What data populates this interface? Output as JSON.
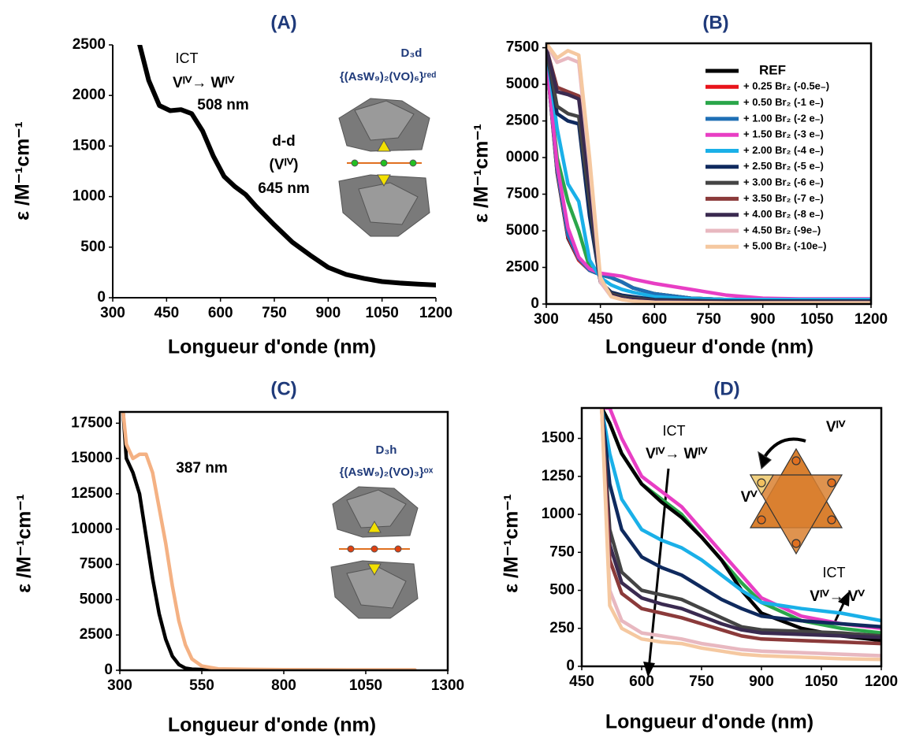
{
  "chart_data": [
    {
      "type": "line",
      "title": "(A)",
      "x_label": "Longueur d'onde (nm)",
      "y_label": "ε /M⁻¹cm⁻¹",
      "xlim": [
        300,
        1200
      ],
      "xticks": [
        300,
        450,
        600,
        750,
        900,
        1050,
        1200
      ],
      "ylim": [
        0,
        2500
      ],
      "yticks": [
        0,
        500,
        1000,
        1500,
        2000,
        2500
      ],
      "grid": false,
      "annotations": [
        "ICT",
        "Vᴵⱽ→ Wᴵⱽ",
        "508 nm",
        "d-d",
        "(Vᴵⱽ)",
        "645 nm",
        "D₃d",
        "{(AsW₉)₂(VO)₆}ʳᵉᵈ"
      ],
      "x": [
        375,
        400,
        430,
        460,
        490,
        520,
        550,
        580,
        610,
        640,
        670,
        700,
        750,
        800,
        850,
        900,
        950,
        1000,
        1050,
        1100,
        1150,
        1200
      ],
      "series": [
        {
          "color": "#000000",
          "values": [
            2500,
            2150,
            1900,
            1850,
            1860,
            1820,
            1650,
            1400,
            1200,
            1100,
            1020,
            900,
            720,
            550,
            420,
            300,
            230,
            190,
            160,
            145,
            135,
            125
          ]
        }
      ]
    },
    {
      "type": "line",
      "title": "(B)",
      "x_label": "Longueur d'onde (nm)",
      "y_label": "ε /M⁻¹cm⁻¹",
      "xlim": [
        300,
        1200
      ],
      "xticks": [
        300,
        450,
        600,
        750,
        900,
        1050,
        1200
      ],
      "ylim": [
        0,
        17800
      ],
      "yticks": [
        0,
        2500,
        5000,
        7500,
        {
          "value": 10000,
          "label": "0000"
        },
        {
          "value": 12500,
          "label": "2500"
        },
        {
          "value": 15000,
          "label": "5000"
        },
        {
          "value": 17500,
          "label": "7500"
        }
      ],
      "grid": false,
      "legend": "upper right",
      "x": [
        300,
        330,
        360,
        390,
        420,
        450,
        480,
        510,
        540,
        600,
        700,
        800,
        900,
        1000,
        1100,
        1200
      ],
      "series": [
        {
          "name": "REF",
          "color": "#000000",
          "values": [
            17000,
            9000,
            4500,
            3000,
            2300,
            2000,
            1800,
            1500,
            1100,
            700,
            400,
            300,
            250,
            230,
            220,
            200
          ]
        },
        {
          "name": "+ 0.25 Br₂ (-0.5e₋)",
          "color": "#e8141b",
          "values": [
            17000,
            9100,
            4600,
            3000,
            2300,
            2000,
            1800,
            1500,
            1100,
            700,
            400,
            300,
            250,
            230,
            220,
            200
          ]
        },
        {
          "name": "+ 0.50 Br₂ (-1 e₋)",
          "color": "#2aa64a",
          "values": [
            17000,
            10000,
            7000,
            5000,
            2500,
            2000,
            1800,
            1500,
            1100,
            700,
            400,
            300,
            250,
            230,
            220,
            200
          ]
        },
        {
          "name": "+ 1.00 Br₂ (-2 e₋)",
          "color": "#1f6fb5",
          "values": [
            17000,
            9200,
            4700,
            3100,
            2300,
            2000,
            1800,
            1500,
            1100,
            700,
            400,
            300,
            250,
            230,
            220,
            200
          ]
        },
        {
          "name": "+ 1.50 Br₂ (-3 e₋)",
          "color": "#e83ec4",
          "values": [
            17000,
            9500,
            5200,
            3200,
            2400,
            2100,
            2000,
            1900,
            1700,
            1400,
            1000,
            600,
            400,
            350,
            350,
            350
          ]
        },
        {
          "name": "+ 2.00 Br₂ (-4 e₋)",
          "color": "#1ab0e8",
          "values": [
            17500,
            12000,
            8200,
            7000,
            3000,
            1800,
            1300,
            1000,
            800,
            500,
            350,
            300,
            300,
            300,
            300,
            300
          ]
        },
        {
          "name": "+ 2.50 Br₂ (-5 e₋)",
          "color": "#0f2a5e",
          "values": [
            17500,
            13000,
            12500,
            12300,
            6000,
            1500,
            800,
            600,
            500,
            300,
            250,
            200,
            200,
            200,
            200,
            200
          ]
        },
        {
          "name": "+ 3.00 Br₂ (-6 e₋)",
          "color": "#444444",
          "values": [
            17500,
            13500,
            13000,
            12800,
            7000,
            1500,
            700,
            500,
            400,
            250,
            200,
            150,
            150,
            150,
            150,
            150
          ]
        },
        {
          "name": "+ 3.50 Br₂ (-7 e₋)",
          "color": "#8b3a3a",
          "values": [
            17500,
            14800,
            14500,
            14200,
            8500,
            1500,
            600,
            400,
            300,
            200,
            150,
            120,
            110,
            110,
            110,
            110
          ]
        },
        {
          "name": "+ 4.00 Br₂ (-8 e₋)",
          "color": "#3a2a50",
          "values": [
            17500,
            14500,
            14300,
            14000,
            8000,
            1500,
            600,
            400,
            300,
            200,
            150,
            120,
            120,
            120,
            120,
            120
          ]
        },
        {
          "name": "+ 4.50 Br₂ (-9e₋)",
          "color": "#e8b8c0",
          "values": [
            17800,
            16500,
            16800,
            16500,
            9500,
            1500,
            500,
            300,
            200,
            120,
            100,
            80,
            80,
            80,
            80,
            80
          ]
        },
        {
          "name": "+ 5.00 Br₂ (-10e₋)",
          "color": "#f5c8a0",
          "values": [
            17800,
            16800,
            17300,
            17000,
            10000,
            1800,
            500,
            300,
            200,
            100,
            80,
            70,
            70,
            70,
            70,
            70
          ]
        }
      ]
    },
    {
      "type": "line",
      "title": "(C)",
      "x_label": "Longueur d'onde (nm)",
      "y_label": "ε /M⁻¹cm⁻¹",
      "xlim": [
        300,
        1300
      ],
      "xticks": [
        300,
        550,
        800,
        1050,
        1300
      ],
      "ylim": [
        0,
        18300
      ],
      "yticks": [
        0,
        2500,
        5000,
        7500,
        10000,
        12500,
        15000,
        17500
      ],
      "grid": false,
      "annotations": [
        "387 nm",
        "D₃h",
        "{(AsW₉)₂(VO)₃}ᵒˣ"
      ],
      "x": [
        310,
        320,
        340,
        360,
        380,
        400,
        420,
        440,
        460,
        480,
        500,
        520,
        550,
        600,
        700,
        800,
        900,
        1000,
        1100,
        1200
      ],
      "series": [
        {
          "color": "#000000",
          "values": [
            18300,
            15000,
            14000,
            12500,
            9500,
            6500,
            4000,
            2200,
            1000,
            400,
            150,
            80,
            50,
            30,
            20,
            20,
            20,
            15,
            10,
            10
          ]
        },
        {
          "color": "#f4b183",
          "values": [
            18300,
            16000,
            15000,
            15300,
            15300,
            14000,
            11500,
            9000,
            6000,
            3500,
            1800,
            800,
            300,
            100,
            60,
            40,
            30,
            30,
            30,
            30
          ]
        }
      ]
    },
    {
      "type": "line",
      "title": "(D)",
      "x_label": "Longueur d'onde (nm)",
      "y_label": "ε /M⁻¹cm⁻¹",
      "xlim": [
        450,
        1200
      ],
      "xticks": [
        450,
        600,
        750,
        900,
        1050,
        1200
      ],
      "ylim": [
        0,
        1700
      ],
      "yticks": [
        0,
        250,
        500,
        750,
        1000,
        1250,
        1500
      ],
      "grid": false,
      "annotations": [
        "ICT",
        "Vᴵⱽ→ Wᴵⱽ",
        "Vᴵⱽ",
        "Vⱽ",
        "ICT",
        "Vᴵⱽ→ Vⱽ"
      ],
      "x": [
        500,
        520,
        550,
        600,
        650,
        700,
        750,
        800,
        850,
        900,
        1000,
        1100,
        1200
      ],
      "series": [
        {
          "color": "#e83ec4",
          "values": [
            1700,
            1700,
            1500,
            1250,
            1150,
            1050,
            900,
            750,
            600,
            450,
            330,
            280,
            250
          ]
        },
        {
          "color": "#2aa64a",
          "values": [
            1700,
            1600,
            1400,
            1200,
            1100,
            1000,
            850,
            700,
            550,
            420,
            300,
            250,
            220
          ]
        },
        {
          "color": "#000000",
          "values": [
            1700,
            1600,
            1400,
            1200,
            1080,
            980,
            850,
            700,
            500,
            350,
            250,
            200,
            170
          ]
        },
        {
          "color": "#1ab0e8",
          "values": [
            1700,
            1400,
            1100,
            900,
            830,
            780,
            700,
            600,
            500,
            420,
            380,
            350,
            300
          ]
        },
        {
          "color": "#0f2a5e",
          "values": [
            1700,
            1200,
            900,
            720,
            650,
            600,
            520,
            440,
            380,
            330,
            300,
            280,
            260
          ]
        },
        {
          "color": "#444444",
          "values": [
            1700,
            900,
            620,
            500,
            470,
            440,
            380,
            320,
            260,
            240,
            230,
            220,
            200
          ]
        },
        {
          "color": "#3a2a50",
          "values": [
            1700,
            800,
            550,
            450,
            410,
            380,
            330,
            280,
            240,
            220,
            210,
            200,
            190
          ]
        },
        {
          "color": "#8b3a3a",
          "values": [
            1700,
            700,
            480,
            380,
            350,
            320,
            280,
            240,
            200,
            180,
            170,
            160,
            150
          ]
        },
        {
          "color": "#e8b8c0",
          "values": [
            1700,
            500,
            300,
            220,
            200,
            180,
            150,
            130,
            110,
            100,
            90,
            80,
            70
          ]
        },
        {
          "color": "#f5c8a0",
          "values": [
            1700,
            400,
            250,
            180,
            160,
            150,
            120,
            100,
            80,
            70,
            60,
            50,
            45
          ]
        }
      ]
    }
  ]
}
